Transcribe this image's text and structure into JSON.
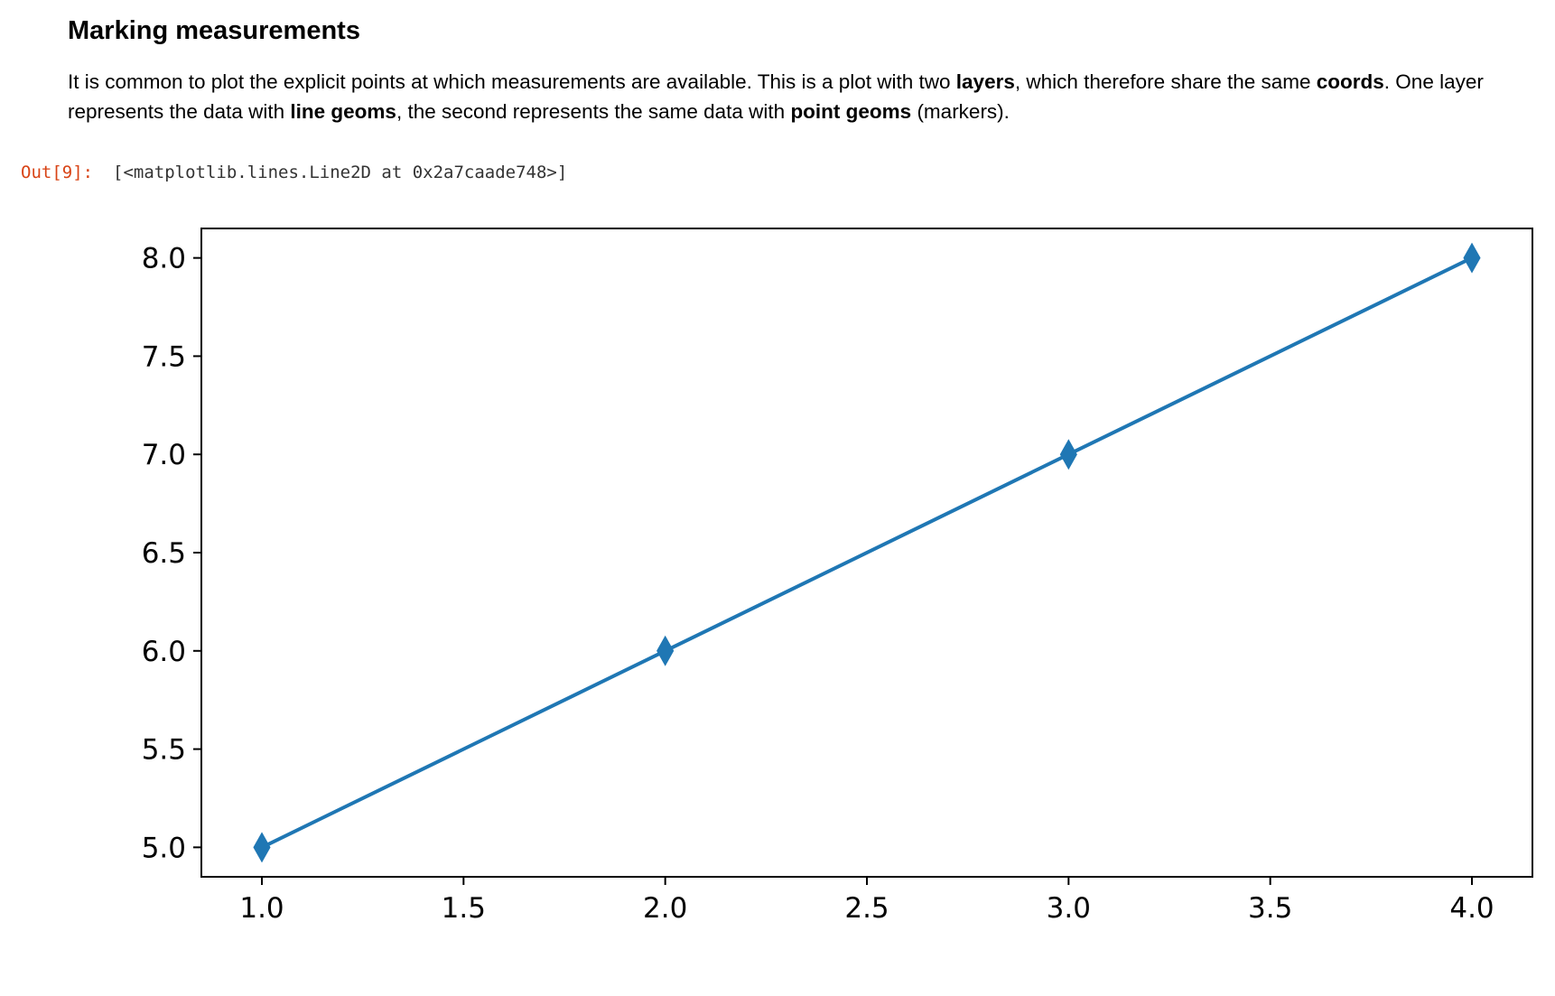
{
  "markdown": {
    "heading": "Marking measurements",
    "para": {
      "t1": "It is common to plot the explicit points at which measurements are available. This is a plot with two ",
      "b1": "layers",
      "t2": ", which therefore share the same ",
      "b2": "coords",
      "t3": ". One layer represents the data with ",
      "b3": "line geoms",
      "t4": ", the second represents the same data with ",
      "b4": "point geoms",
      "t5": " (markers)."
    }
  },
  "output": {
    "prompt": "Out[9]:",
    "text": "[<matplotlib.lines.Line2D at 0x2a7caade748>]"
  },
  "colors": {
    "series": "#1f77b4",
    "prompt": "#d84315"
  },
  "chart_data": {
    "type": "line",
    "marker": "thin-diamond",
    "x": [
      1.0,
      2.0,
      3.0,
      4.0
    ],
    "series": [
      {
        "values": [
          5.0,
          6.0,
          7.0,
          8.0
        ]
      }
    ],
    "xlim": [
      0.85,
      4.15
    ],
    "ylim": [
      4.85,
      8.15
    ],
    "xticks": [
      1.0,
      1.5,
      2.0,
      2.5,
      3.0,
      3.5,
      4.0
    ],
    "xtick_labels": [
      "1.0",
      "1.5",
      "2.0",
      "2.5",
      "3.0",
      "3.5",
      "4.0"
    ],
    "yticks": [
      5.0,
      5.5,
      6.0,
      6.5,
      7.0,
      7.5,
      8.0
    ],
    "ytick_labels": [
      "5.0",
      "5.5",
      "6.0",
      "6.5",
      "7.0",
      "7.5",
      "8.0"
    ],
    "grid": false,
    "title": "",
    "xlabel": "",
    "ylabel": ""
  }
}
